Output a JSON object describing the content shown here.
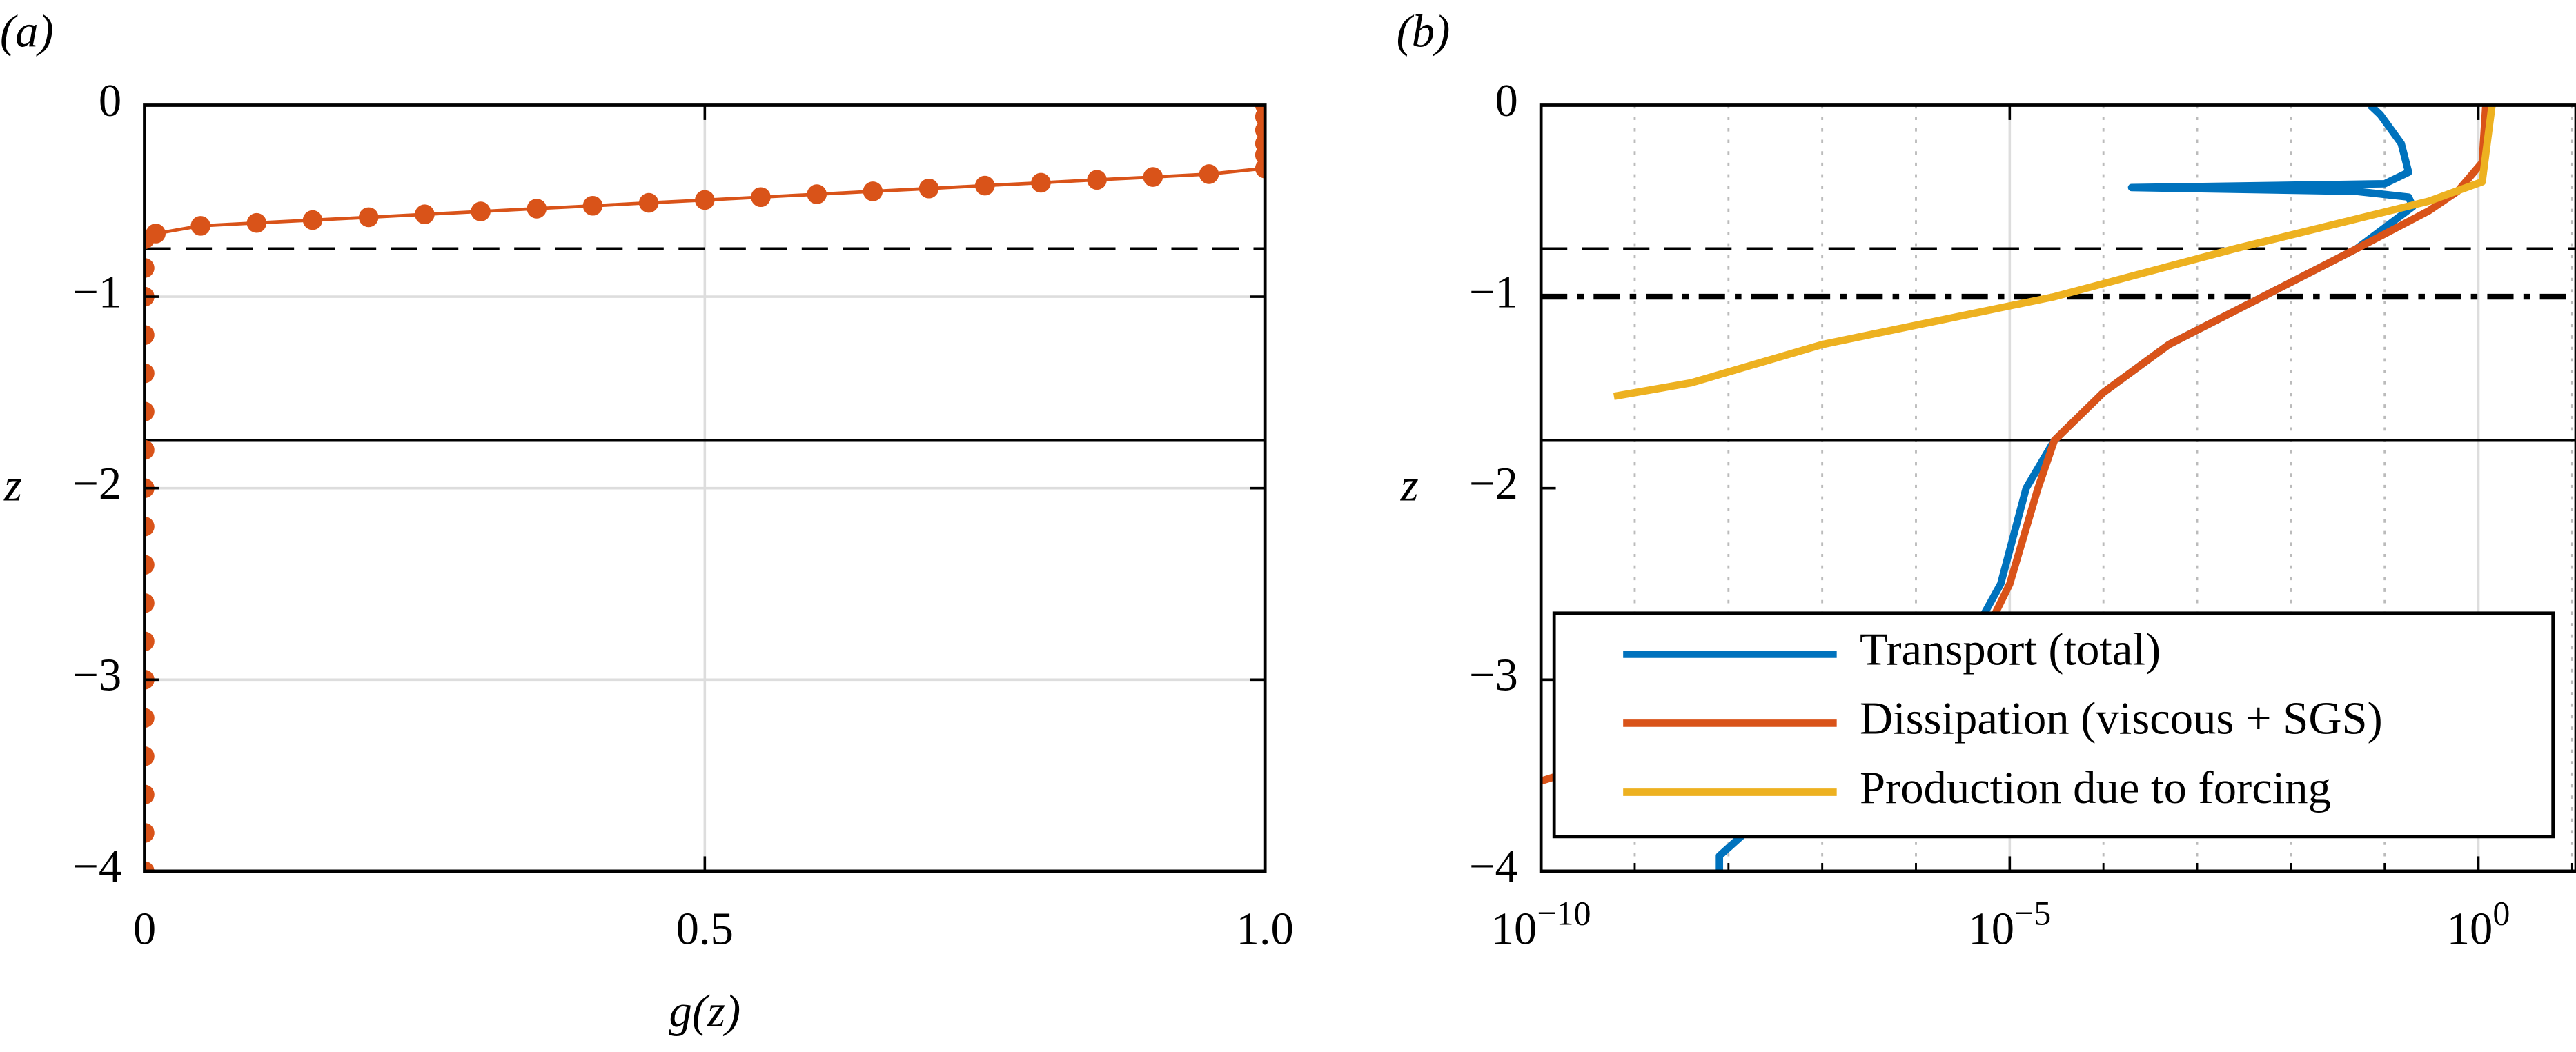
{
  "chart_data": [
    {
      "type": "line",
      "panel_label": "(a)",
      "xlabel": "g(z)",
      "ylabel": "z",
      "xlim": [
        0,
        1
      ],
      "ylim": [
        -4,
        0
      ],
      "xticks": [
        0,
        0.5,
        {
          "value": 1,
          "label": "1.0"
        }
      ],
      "yticks": [
        0,
        {
          "value": -1,
          "label": "−1"
        },
        {
          "value": -2,
          "label": "−2"
        },
        {
          "value": -3,
          "label": "−3"
        },
        {
          "value": -4,
          "label": "−4"
        }
      ],
      "grid": true,
      "hlines": [
        {
          "value": -0.75,
          "style": "dashed"
        },
        {
          "value": -1.75,
          "style": "solid"
        }
      ],
      "series": [
        {
          "color": "#d95319",
          "marker": "circle",
          "x": [
            0,
            0,
            0,
            0,
            0,
            0,
            0,
            0,
            0,
            0,
            0,
            0,
            0,
            0,
            0,
            0,
            0,
            0,
            0.01,
            0.05,
            0.1,
            0.15,
            0.2,
            0.25,
            0.3,
            0.35,
            0.4,
            0.45,
            0.5,
            0.55,
            0.6,
            0.65,
            0.7,
            0.75,
            0.8,
            0.85,
            0.9,
            0.95,
            1,
            1,
            1,
            1,
            1,
            1
          ],
          "values": [
            -4,
            -3.8,
            -3.6,
            -3.4,
            -3.2,
            -3,
            -2.8,
            -2.6,
            -2.4,
            -2.2,
            -2,
            -1.8,
            -1.6,
            -1.4,
            -1.2,
            -1,
            -0.85,
            -0.7,
            -0.67,
            -0.63,
            -0.615,
            -0.6,
            -0.585,
            -0.57,
            -0.555,
            -0.54,
            -0.525,
            -0.51,
            -0.495,
            -0.48,
            -0.465,
            -0.45,
            -0.435,
            -0.42,
            -0.405,
            -0.39,
            -0.375,
            -0.36,
            -0.33,
            -0.26,
            -0.2,
            -0.13,
            -0.06,
            0
          ]
        }
      ]
    },
    {
      "type": "line",
      "panel_label": "(b)",
      "ylabel": "z",
      "xscale": "log",
      "xlim": [
        1e-10,
        11
      ],
      "ylim": [
        -4,
        0
      ],
      "xticks": [
        {
          "value": 1e-10,
          "label": "10−10"
        },
        {
          "value": 1e-05,
          "label": "10−5"
        },
        {
          "value": 1,
          "label": "100"
        }
      ],
      "xminorticks": [
        1e-09,
        1e-08,
        1e-07,
        1e-06,
        0.0001,
        0.001,
        0.01,
        0.1,
        10
      ],
      "yticks": [
        0,
        {
          "value": -1,
          "label": "−1"
        },
        {
          "value": -2,
          "label": "−2"
        },
        {
          "value": -3,
          "label": "−3"
        },
        {
          "value": -4,
          "label": "−4"
        }
      ],
      "grid": "x",
      "hlines": [
        {
          "value": -0.75,
          "style": "dashed"
        },
        {
          "value": -1,
          "style": "dashdot"
        },
        {
          "value": -1.75,
          "style": "solid"
        }
      ],
      "legend": "lower right",
      "series": [
        {
          "name": "Transport (total)",
          "color": "#0072bd",
          "x": [
            0.07,
            0.09,
            0.15,
            0.18,
            0.1,
            0.0002,
            0.05,
            0.18,
            0.2,
            0.05,
            0.005,
            0.0005,
            0.0001,
            3e-05,
            1.5e-05,
            8e-06,
            1e-06,
            1.5e-08,
            8e-09,
            8e-09
          ],
          "values": [
            0,
            -0.05,
            -0.2,
            -0.35,
            -0.41,
            -0.43,
            -0.45,
            -0.48,
            -0.53,
            -0.75,
            -1,
            -1.25,
            -1.5,
            -1.75,
            -2,
            -2.5,
            -3.3,
            -3.8,
            -3.92,
            -4
          ]
        },
        {
          "name": "Dissipation (viscous + SGS)",
          "color": "#d95319",
          "x": [
            1.2,
            1.1,
            0.6,
            0.3,
            0.05,
            0.005,
            0.0005,
            0.0001,
            3e-05,
            2e-05,
            1e-05,
            5e-06,
            1e-10
          ],
          "values": [
            0,
            -0.3,
            -0.45,
            -0.55,
            -0.75,
            -1,
            -1.25,
            -1.5,
            -1.75,
            -2,
            -2.5,
            -2.8,
            -3.53
          ]
        },
        {
          "name": "Production due to forcing",
          "color": "#edb120",
          "x": [
            1.4,
            1.1,
            0.3,
            0.0025,
            3e-05,
            1e-07,
            4e-09,
            6e-10
          ],
          "values": [
            0,
            -0.4,
            -0.5,
            -0.75,
            -1,
            -1.25,
            -1.45,
            -1.52
          ]
        }
      ]
    }
  ]
}
